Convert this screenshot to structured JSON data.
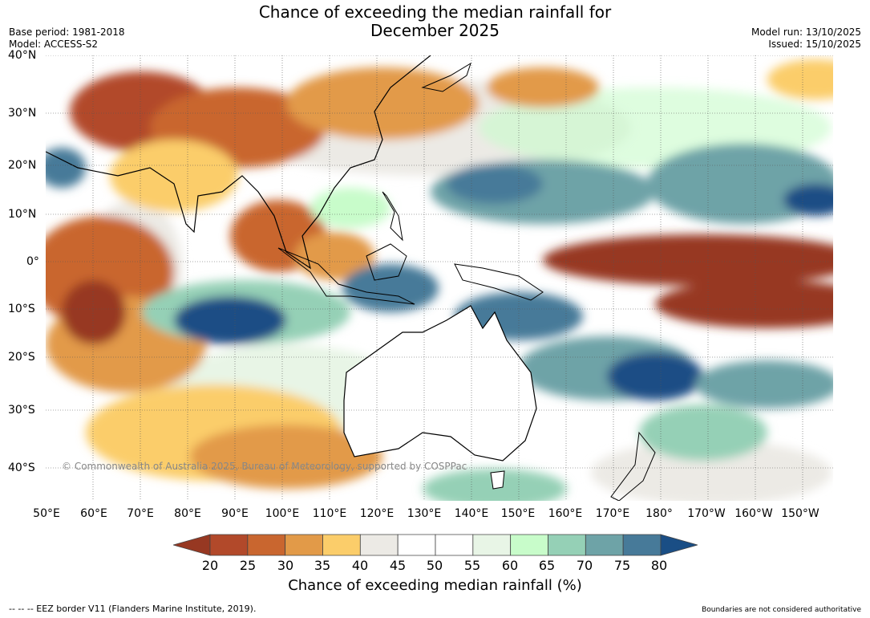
{
  "title_line1": "Chance of exceeding the median rainfall for",
  "title_line2": "December 2025",
  "base_period": "Base period: 1981-2018",
  "model": "Model: ACCESS-S2",
  "model_run": "Model run: 13/10/2025",
  "issued": "Issued: 15/10/2025",
  "lat_labels": [
    "40°N",
    "30°N",
    "20°N",
    "10°N",
    "0°",
    "10°S",
    "20°S",
    "30°S",
    "40°S"
  ],
  "lon_labels": [
    "50°E",
    "60°E",
    "70°E",
    "80°E",
    "90°E",
    "100°E",
    "110°E",
    "120°E",
    "130°E",
    "140°E",
    "150°E",
    "160°E",
    "170°E",
    "180°",
    "170°W",
    "160°W",
    "150°W"
  ],
  "copyright": "© Commonwealth of Australia 2025, Bureau of Meteorology, supported by COSPPac",
  "colorbar": {
    "ticks": [
      "20",
      "25",
      "30",
      "35",
      "40",
      "45",
      "50",
      "55",
      "60",
      "65",
      "70",
      "75",
      "80"
    ],
    "colors": [
      "#973822",
      "#b2492a",
      "#c9662f",
      "#e29a48",
      "#fbcd6a",
      "#eceae5",
      "#ffffff",
      "#ffffff",
      "#e8f5e6",
      "#c8fcca",
      "#95d0b6",
      "#6ea3a7",
      "#477a99",
      "#1a4e85"
    ],
    "label": "Chance of exceeding median rainfall (%)"
  },
  "footer_left": "-- -- -- EEZ border V11 (Flanders Marine Institute, 2019).",
  "footer_right": "Boundaries are not considered authoritative"
}
